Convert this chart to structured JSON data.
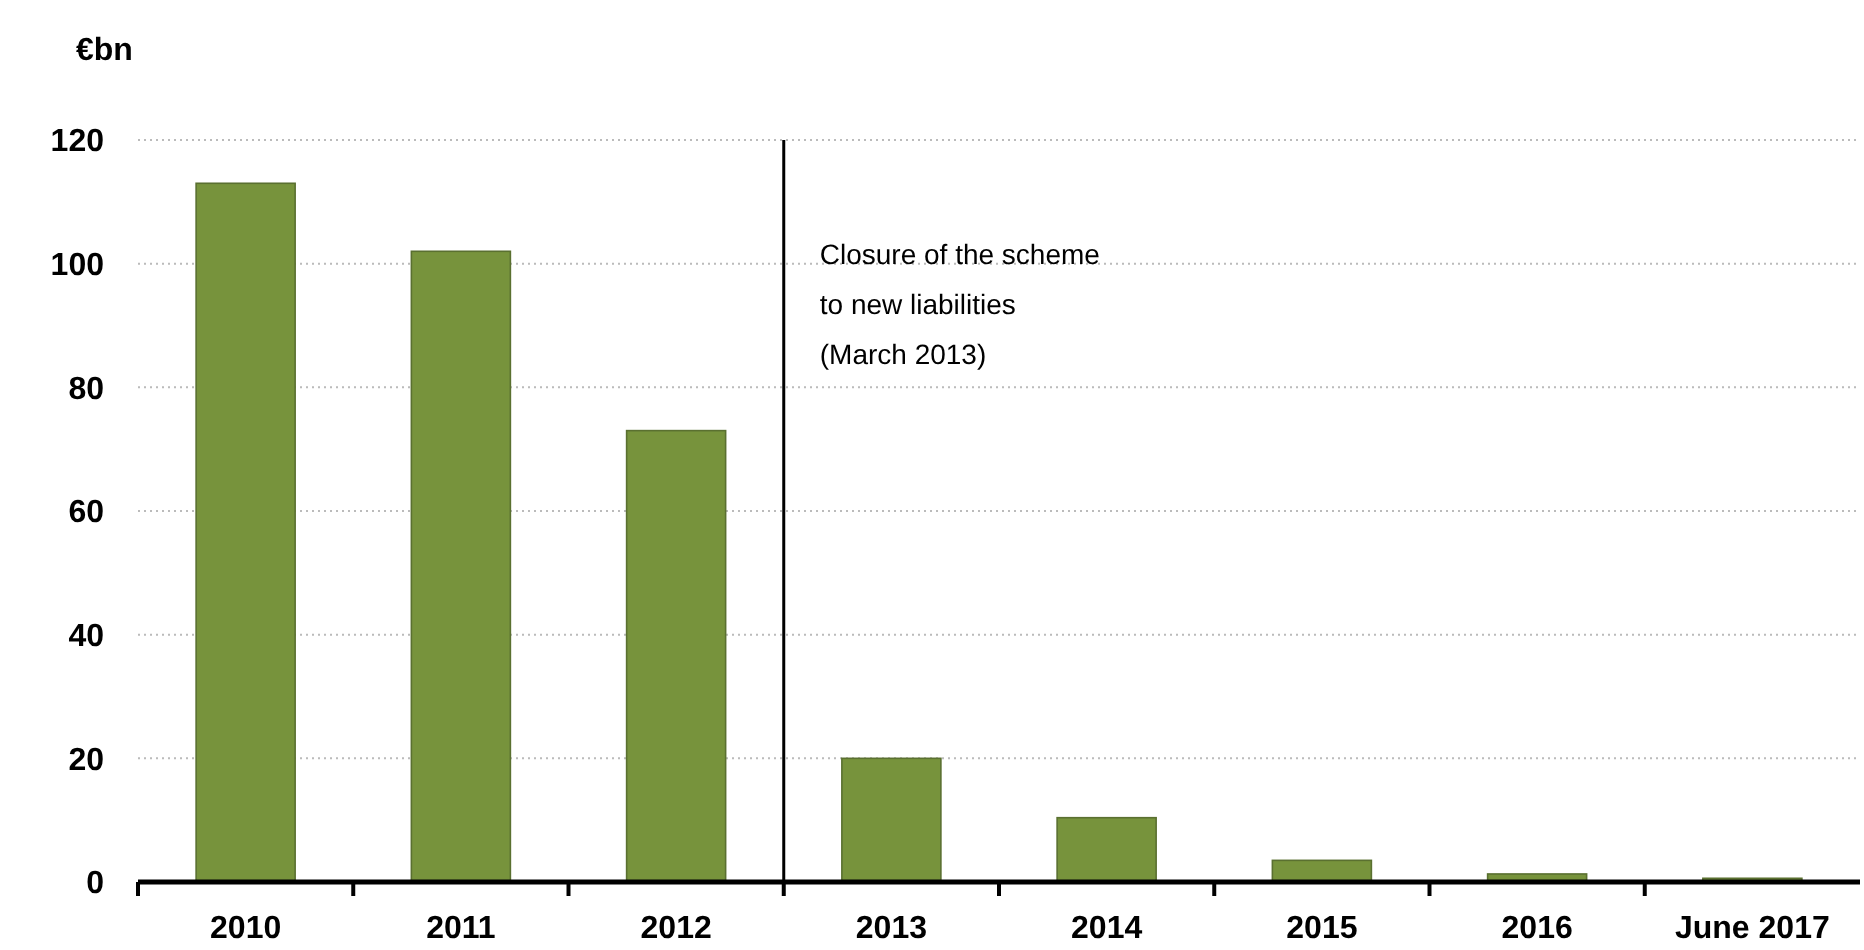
{
  "chart_data": {
    "type": "bar",
    "ylabel": "€bn",
    "categories": [
      "2010",
      "2011",
      "2012",
      "2013",
      "2014",
      "2015",
      "2016",
      "June 2017"
    ],
    "values": [
      113,
      102,
      73,
      20,
      10.4,
      3.5,
      1.3,
      0.6
    ],
    "color": "#77933c",
    "ylim": [
      0,
      120
    ],
    "yticks": [
      0,
      20,
      40,
      60,
      80,
      100,
      120
    ],
    "grid": "y",
    "ref_lines": [
      {
        "axis": "x",
        "value": "2013",
        "label": "Closure of the scheme\nto new liabilities\n(March 2013)",
        "color": "#000000"
      }
    ]
  }
}
